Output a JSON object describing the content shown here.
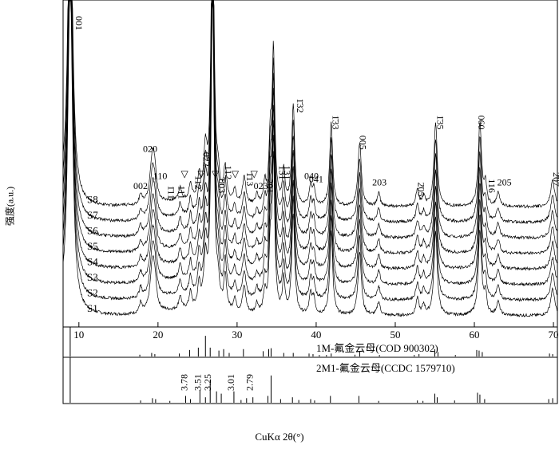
{
  "chart_data": {
    "type": "line",
    "title": "",
    "xlabel": "CuKα 2θ(°)",
    "ylabel": "强度(a.u.)",
    "xlim": [
      8,
      70.5
    ],
    "xticks": [
      10,
      20,
      30,
      40,
      50,
      60,
      70
    ],
    "grid": false,
    "legend": "none",
    "series": [
      {
        "name": "S1",
        "offset": 0
      },
      {
        "name": "S2",
        "offset": 1
      },
      {
        "name": "S3",
        "offset": 2
      },
      {
        "name": "S4",
        "offset": 3
      },
      {
        "name": "S5",
        "offset": 4
      },
      {
        "name": "S6",
        "offset": 5
      },
      {
        "name": "S7",
        "offset": 6
      },
      {
        "name": "S8",
        "offset": 7
      }
    ],
    "peaks": [
      {
        "x": 8.9,
        "h": 100,
        "w": 0.35
      },
      {
        "x": 17.8,
        "h": 3,
        "w": 0.2
      },
      {
        "x": 19.3,
        "h": 14,
        "w": 0.35
      },
      {
        "x": 19.6,
        "h": 6,
        "w": 0.25
      },
      {
        "x": 22.8,
        "h": 4,
        "w": 0.2
      },
      {
        "x": 24.1,
        "h": 5,
        "w": 0.2
      },
      {
        "x": 25.2,
        "h": 7,
        "w": 0.2
      },
      {
        "x": 26.0,
        "h": 14,
        "w": 0.25
      },
      {
        "x": 26.9,
        "h": 95,
        "w": 0.22
      },
      {
        "x": 27.6,
        "h": 6,
        "w": 0.2
      },
      {
        "x": 28.5,
        "h": 10,
        "w": 0.22
      },
      {
        "x": 29.7,
        "h": 4,
        "w": 0.2
      },
      {
        "x": 30.9,
        "h": 8,
        "w": 0.25
      },
      {
        "x": 32.5,
        "h": 3,
        "w": 0.2
      },
      {
        "x": 33.5,
        "h": 6,
        "w": 0.2
      },
      {
        "x": 34.2,
        "h": 18,
        "w": 0.2
      },
      {
        "x": 34.6,
        "h": 45,
        "w": 0.2
      },
      {
        "x": 35.9,
        "h": 10,
        "w": 0.2
      },
      {
        "x": 37.1,
        "h": 30,
        "w": 0.22
      },
      {
        "x": 39.3,
        "h": 6,
        "w": 0.2
      },
      {
        "x": 39.7,
        "h": 5,
        "w": 0.2
      },
      {
        "x": 41.9,
        "h": 25,
        "w": 0.22
      },
      {
        "x": 45.5,
        "h": 19,
        "w": 0.25
      },
      {
        "x": 47.9,
        "h": 4,
        "w": 0.22
      },
      {
        "x": 52.8,
        "h": 5,
        "w": 0.22
      },
      {
        "x": 53.6,
        "h": 3,
        "w": 0.2
      },
      {
        "x": 55.1,
        "h": 25,
        "w": 0.25
      },
      {
        "x": 60.7,
        "h": 25,
        "w": 0.25
      },
      {
        "x": 61.4,
        "h": 6,
        "w": 0.2
      },
      {
        "x": 63.0,
        "h": 4,
        "w": 0.25
      },
      {
        "x": 69.9,
        "h": 8,
        "w": 0.3
      }
    ],
    "annotations": [
      {
        "text": "001",
        "x": 9.6,
        "rotate": true
      },
      {
        "text": "002",
        "x": 17.8
      },
      {
        "text": "020",
        "x": 19.0
      },
      {
        "text": "110",
        "x": 20.3
      },
      {
        "text": "1̄11",
        "x": 21.3,
        "rotate": true
      },
      {
        "text": "111",
        "x": 22.6,
        "rotate": true
      },
      {
        "text": "1̄12",
        "x": 24.7,
        "rotate": true
      },
      {
        "text": "022",
        "x": 25.7,
        "rotate": true
      },
      {
        "text": "003",
        "x": 27.7,
        "rotate": true
      },
      {
        "text": "112",
        "x": 28.5,
        "rotate": true
      },
      {
        "text": "1̄13",
        "x": 31.2,
        "rotate": true
      },
      {
        "text": "023",
        "x": 33.0
      },
      {
        "text": "2̄01",
        "x": 33.8,
        "rotate": true
      },
      {
        "text": "1̄31",
        "x": 35.3,
        "rotate": true
      },
      {
        "text": "131",
        "x": 35.9,
        "rotate": true
      },
      {
        "text": "1̄32",
        "x": 37.6,
        "rotate": true
      },
      {
        "text": "040",
        "x": 39.4
      },
      {
        "text": "041",
        "x": 40.0
      },
      {
        "text": "1̄33",
        "x": 42.1,
        "rotate": true
      },
      {
        "text": "005",
        "x": 45.5,
        "rotate": true
      },
      {
        "text": "203",
        "x": 48.0
      },
      {
        "text": "2̄05",
        "x": 52.9,
        "rotate": true
      },
      {
        "text": "1̄35",
        "x": 55.3,
        "rotate": true
      },
      {
        "text": "060",
        "x": 60.5,
        "rotate": true
      },
      {
        "text": "116",
        "x": 61.8,
        "rotate": true
      },
      {
        "text": "205",
        "x": 63.8
      },
      {
        "text": "2̄07",
        "x": 70.0,
        "rotate": true
      }
    ],
    "unidentified_markers": [
      "▽",
      "▽",
      "▽",
      "▽",
      "▽"
    ],
    "marker_x": [
      23.4,
      25.5,
      27.3,
      29.8,
      32.2
    ],
    "reference_panels": [
      {
        "label": "1M-氟金云母(COD 900302)",
        "lines": [
          [
            8.9,
            100
          ],
          [
            17.7,
            6
          ],
          [
            19.2,
            12
          ],
          [
            19.6,
            8
          ],
          [
            22.7,
            10
          ],
          [
            24.0,
            22
          ],
          [
            25.1,
            30
          ],
          [
            26.0,
            70
          ],
          [
            26.6,
            30
          ],
          [
            27.7,
            20
          ],
          [
            28.3,
            25
          ],
          [
            29.0,
            12
          ],
          [
            30.8,
            25
          ],
          [
            33.3,
            18
          ],
          [
            34.0,
            25
          ],
          [
            34.3,
            28
          ],
          [
            35.9,
            12
          ],
          [
            37.1,
            12
          ],
          [
            39.1,
            10
          ],
          [
            39.6,
            8
          ],
          [
            40.4,
            5
          ],
          [
            41.3,
            5
          ],
          [
            41.9,
            10
          ],
          [
            44.9,
            6
          ],
          [
            45.5,
            18
          ],
          [
            48.0,
            5
          ],
          [
            52.4,
            5
          ],
          [
            53.0,
            8
          ],
          [
            55.0,
            25
          ],
          [
            55.4,
            15
          ],
          [
            57.6,
            5
          ],
          [
            60.3,
            22
          ],
          [
            60.6,
            20
          ],
          [
            61.0,
            15
          ],
          [
            69.5,
            10
          ],
          [
            69.9,
            8
          ]
        ]
      },
      {
        "label": "2M1-氟金云母(CCDC 1579710)",
        "lines": [
          [
            8.9,
            100
          ],
          [
            17.8,
            5
          ],
          [
            19.3,
            10
          ],
          [
            19.7,
            8
          ],
          [
            21.5,
            4
          ],
          [
            23.5,
            15
          ],
          [
            24.1,
            8
          ],
          [
            25.3,
            28
          ],
          [
            26.0,
            12
          ],
          [
            26.6,
            50
          ],
          [
            27.4,
            25
          ],
          [
            28.0,
            20
          ],
          [
            29.6,
            25
          ],
          [
            30.5,
            6
          ],
          [
            31.2,
            10
          ],
          [
            32.0,
            12
          ],
          [
            33.9,
            15
          ],
          [
            34.3,
            60
          ],
          [
            35.5,
            8
          ],
          [
            37.0,
            12
          ],
          [
            37.8,
            6
          ],
          [
            39.3,
            8
          ],
          [
            39.8,
            5
          ],
          [
            41.8,
            15
          ],
          [
            45.4,
            15
          ],
          [
            47.9,
            4
          ],
          [
            52.8,
            5
          ],
          [
            53.5,
            4
          ],
          [
            55.0,
            20
          ],
          [
            55.3,
            12
          ],
          [
            57.5,
            5
          ],
          [
            60.4,
            22
          ],
          [
            60.7,
            18
          ],
          [
            61.3,
            8
          ],
          [
            69.4,
            8
          ],
          [
            69.9,
            10
          ]
        ]
      }
    ],
    "reference_annotations": [
      "3.78",
      "3.51",
      "3.25",
      "3.01",
      "2.79"
    ],
    "reference_annotation_x": [
      23.7,
      25.4,
      26.7,
      29.6,
      32.0
    ]
  }
}
